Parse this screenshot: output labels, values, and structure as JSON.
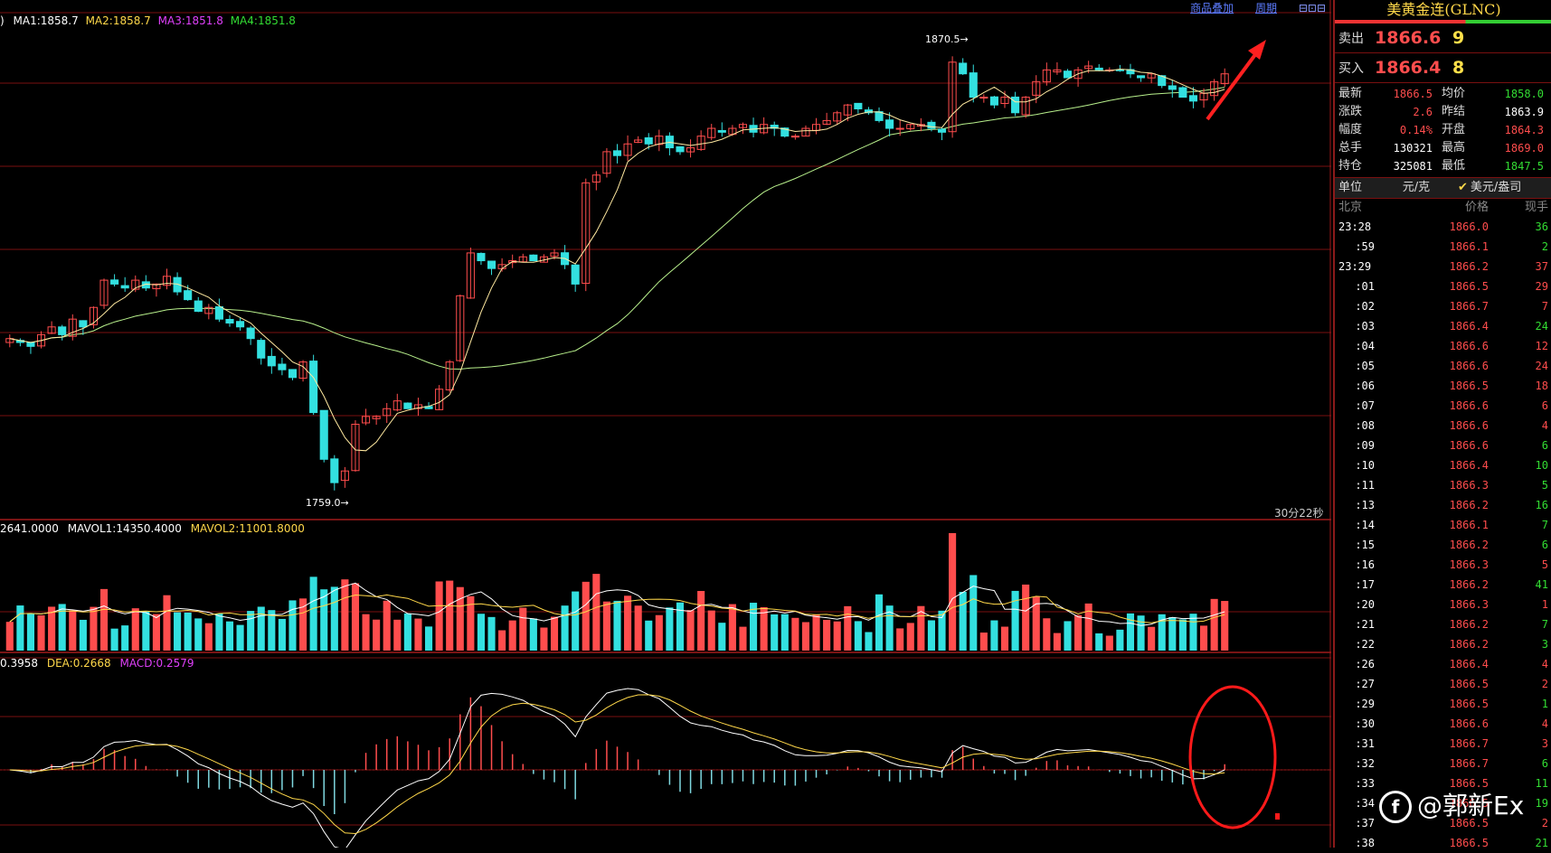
{
  "top_links": [
    "商品叠加",
    "周期"
  ],
  "ma_legend": {
    "prefix": ")",
    "items": [
      {
        "label": "MA1:1858.7",
        "color": "#ffffff"
      },
      {
        "label": "MA2:1858.7",
        "color": "#ffd84a"
      },
      {
        "label": "MA3:1851.8",
        "color": "#e040fb"
      },
      {
        "label": "MA4:1851.8",
        "color": "#33dd33"
      }
    ]
  },
  "price_high_label": "1870.5",
  "price_low_label": "1759.0",
  "timer": "30分22秒",
  "vol_legend": {
    "items": [
      {
        "label": "2641.0000",
        "color": "#ffffff"
      },
      {
        "label": "MAVOL1:14350.4000",
        "color": "#ffffff"
      },
      {
        "label": "MAVOL2:11001.8000",
        "color": "#ffd84a"
      }
    ]
  },
  "macd_legend": {
    "items": [
      {
        "label": "0.3958",
        "color": "#ffffff"
      },
      {
        "label": "DEA:0.2668",
        "color": "#ffd84a"
      },
      {
        "label": "MACD:0.2579",
        "color": "#e040fb"
      }
    ]
  },
  "colors": {
    "up": "#ff4d4d",
    "down": "#33e0e0",
    "grid": "#7a1010",
    "ma_short": "#ffffff",
    "ma_long": "#b8f08c"
  },
  "chart_data": {
    "type": "candlestick",
    "price_range": [
      1755,
      1878
    ],
    "high": 1870.5,
    "low": 1759.0,
    "close_series": [
      1798,
      1797,
      1796,
      1799,
      1801,
      1799,
      1803,
      1801,
      1806,
      1813,
      1812,
      1811,
      1813,
      1811,
      1812,
      1814,
      1810,
      1808,
      1805,
      1806,
      1803,
      1802,
      1801,
      1798,
      1793,
      1791,
      1790,
      1788,
      1792,
      1779,
      1767,
      1761,
      1764,
      1776,
      1778,
      1778,
      1780,
      1782,
      1780,
      1781,
      1780,
      1785,
      1792,
      1809,
      1820,
      1818,
      1816,
      1817,
      1818,
      1819,
      1818,
      1819,
      1820,
      1817,
      1812,
      1838,
      1840,
      1846,
      1845,
      1848,
      1849,
      1848,
      1850,
      1847,
      1846,
      1847,
      1850,
      1852,
      1851,
      1852,
      1853,
      1851,
      1853,
      1852,
      1850,
      1850,
      1852,
      1853,
      1854,
      1856,
      1858,
      1857,
      1856,
      1854,
      1852,
      1852,
      1853,
      1853,
      1852,
      1851,
      1869,
      1866,
      1860,
      1860,
      1858,
      1860,
      1856,
      1860,
      1864,
      1867,
      1867,
      1865,
      1867,
      1868,
      1867,
      1867,
      1867,
      1866,
      1865,
      1866,
      1863,
      1862,
      1860,
      1859,
      1861,
      1864,
      1866
    ],
    "volume_spike_max": 1,
    "macd_hist_note": "histogram oscillates; currently crossing above zero"
  },
  "panel": {
    "title": "美黄金连(GLNC)",
    "sell": {
      "label": "卖出",
      "price": "1866.6",
      "qty": "9"
    },
    "buy": {
      "label": "买入",
      "price": "1866.4",
      "qty": "8"
    },
    "stats": [
      {
        "k": "最新",
        "v": "1866.5",
        "vc": "#ff4d4d",
        "k2": "均价",
        "v2": "1858.0",
        "v2c": "#33dd33"
      },
      {
        "k": "涨跌",
        "v": "2.6",
        "vc": "#ff4d4d",
        "k2": "昨结",
        "v2": "1863.9",
        "v2c": "#ffffff"
      },
      {
        "k": "幅度",
        "v": "0.14%",
        "vc": "#ff4d4d",
        "k2": "开盘",
        "v2": "1864.3",
        "v2c": "#ff4d4d"
      },
      {
        "k": "总手",
        "v": "130321",
        "vc": "#ffffff",
        "k2": "最高",
        "v2": "1869.0",
        "v2c": "#ff4d4d"
      },
      {
        "k": "持仓",
        "v": "325081",
        "vc": "#ffffff",
        "k2": "最低",
        "v2": "1847.5",
        "v2c": "#33dd33"
      }
    ],
    "unit": {
      "label": "单位",
      "opt1": "元/克",
      "opt2": "美元/盎司"
    },
    "ticks_head": {
      "time": "北京",
      "price": "价格",
      "vol": "现手"
    },
    "ticks": [
      {
        "t": "23:28",
        "p": "1866.0",
        "v": "36",
        "vc": "#33dd33",
        "main": true
      },
      {
        "t": ":59",
        "p": "1866.1",
        "v": "2",
        "vc": "#33dd33"
      },
      {
        "t": "23:29",
        "p": "1866.2",
        "v": "37",
        "vc": "#ff4d4d",
        "main": true
      },
      {
        "t": ":01",
        "p": "1866.5",
        "v": "29",
        "vc": "#ff4d4d"
      },
      {
        "t": ":02",
        "p": "1866.7",
        "v": "7",
        "vc": "#ff4d4d"
      },
      {
        "t": ":03",
        "p": "1866.4",
        "v": "24",
        "vc": "#33dd33"
      },
      {
        "t": ":04",
        "p": "1866.6",
        "v": "12",
        "vc": "#ff4d4d"
      },
      {
        "t": ":05",
        "p": "1866.6",
        "v": "24",
        "vc": "#ff4d4d"
      },
      {
        "t": ":06",
        "p": "1866.5",
        "v": "18",
        "vc": "#ff4d4d"
      },
      {
        "t": ":07",
        "p": "1866.6",
        "v": "6",
        "vc": "#ff4d4d"
      },
      {
        "t": ":08",
        "p": "1866.6",
        "v": "4",
        "vc": "#ff4d4d"
      },
      {
        "t": ":09",
        "p": "1866.6",
        "v": "6",
        "vc": "#33dd33"
      },
      {
        "t": ":10",
        "p": "1866.4",
        "v": "10",
        "vc": "#33dd33"
      },
      {
        "t": ":11",
        "p": "1866.3",
        "v": "5",
        "vc": "#33dd33"
      },
      {
        "t": ":13",
        "p": "1866.2",
        "v": "16",
        "vc": "#33dd33"
      },
      {
        "t": ":14",
        "p": "1866.1",
        "v": "7",
        "vc": "#33dd33"
      },
      {
        "t": ":15",
        "p": "1866.2",
        "v": "6",
        "vc": "#33dd33"
      },
      {
        "t": ":16",
        "p": "1866.3",
        "v": "5",
        "vc": "#ff4d4d"
      },
      {
        "t": ":17",
        "p": "1866.2",
        "v": "41",
        "vc": "#33dd33"
      },
      {
        "t": ":20",
        "p": "1866.3",
        "v": "1",
        "vc": "#ff4d4d"
      },
      {
        "t": ":21",
        "p": "1866.2",
        "v": "7",
        "vc": "#33dd33"
      },
      {
        "t": ":22",
        "p": "1866.2",
        "v": "3",
        "vc": "#33dd33"
      },
      {
        "t": ":26",
        "p": "1866.4",
        "v": "4",
        "vc": "#ff4d4d"
      },
      {
        "t": ":27",
        "p": "1866.5",
        "v": "2",
        "vc": "#ff4d4d"
      },
      {
        "t": ":29",
        "p": "1866.5",
        "v": "1",
        "vc": "#33dd33"
      },
      {
        "t": ":30",
        "p": "1866.6",
        "v": "4",
        "vc": "#ff4d4d"
      },
      {
        "t": ":31",
        "p": "1866.7",
        "v": "3",
        "vc": "#ff4d4d"
      },
      {
        "t": ":32",
        "p": "1866.7",
        "v": "6",
        "vc": "#33dd33"
      },
      {
        "t": ":33",
        "p": "1866.5",
        "v": "11",
        "vc": "#33dd33"
      },
      {
        "t": ":34",
        "p": "1866.5",
        "v": "19",
        "vc": "#33dd33"
      },
      {
        "t": ":37",
        "p": "1866.5",
        "v": "2",
        "vc": "#ff4d4d"
      },
      {
        "t": ":38",
        "p": "1866.5",
        "v": "21",
        "vc": "#33dd33"
      }
    ]
  },
  "watermark": "@郭新Ex"
}
